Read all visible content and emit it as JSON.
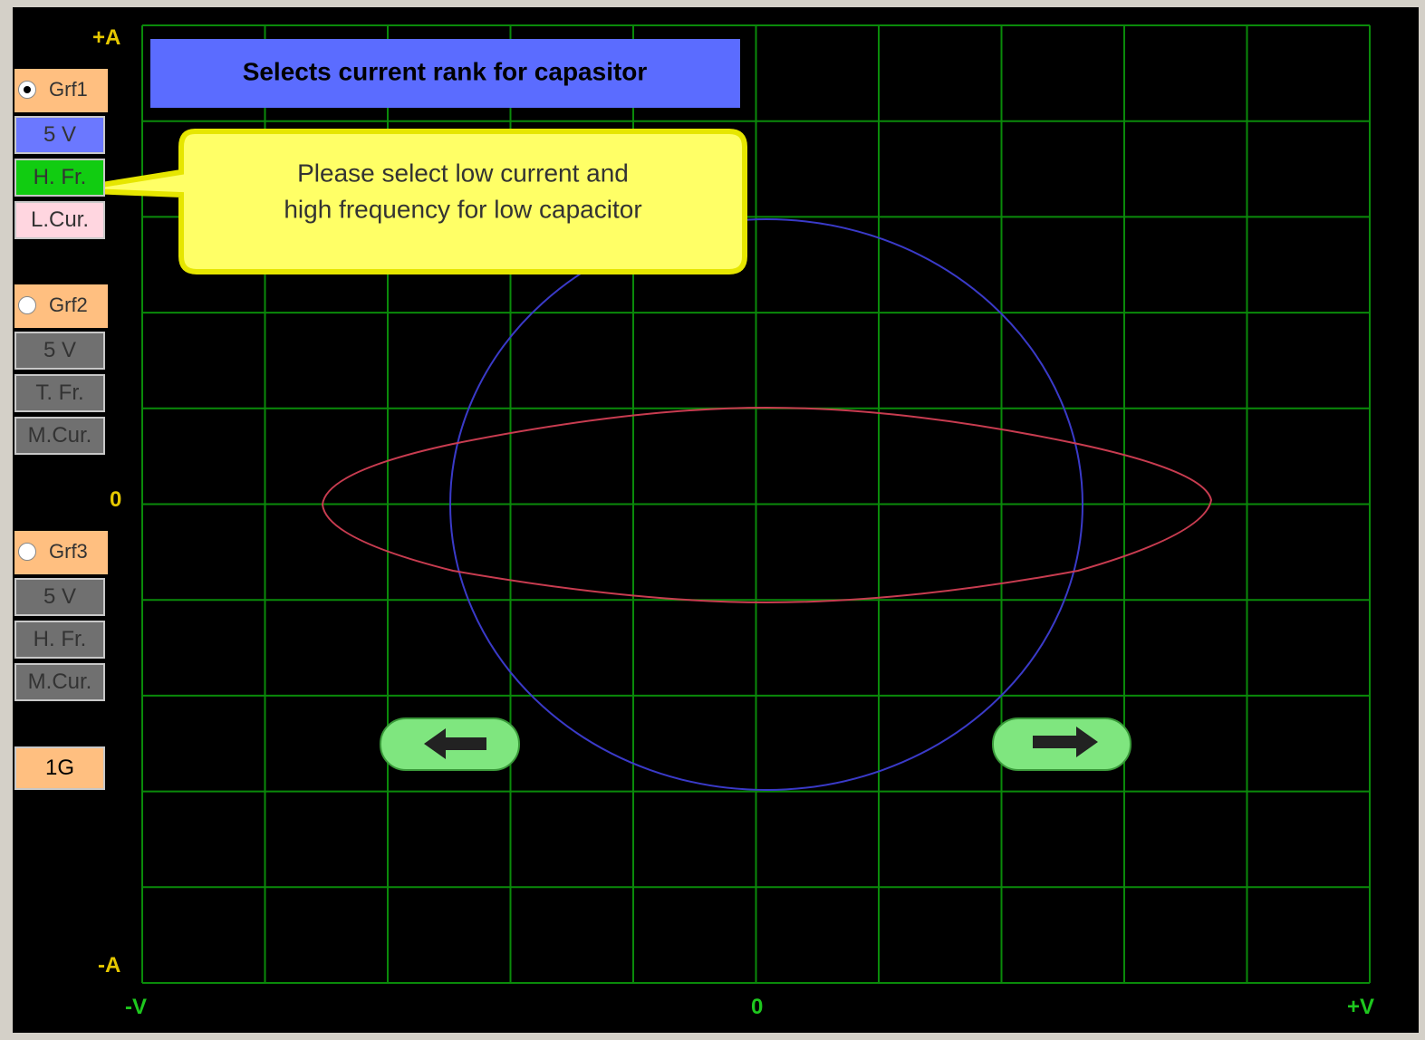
{
  "axis_labels": {
    "y_top": "+A",
    "y_mid": "0",
    "y_bottom": "-A",
    "x_left": "-V",
    "x_mid": "0",
    "x_right": "+V"
  },
  "banner": "Selects current rank for capasitor",
  "tooltip": [
    "Please select low current and",
    "high frequency for low capacitor"
  ],
  "groups": [
    {
      "label": "Grf1",
      "selected": true,
      "buttons": [
        "5 V",
        "H. Fr.",
        "L.Cur."
      ]
    },
    {
      "label": "Grf2",
      "selected": false,
      "buttons": [
        "5 V",
        "T. Fr.",
        "M.Cur."
      ]
    },
    {
      "label": "Grf3",
      "selected": false,
      "buttons": [
        "5 V",
        "H. Fr.",
        "M.Cur."
      ]
    }
  ],
  "global_button": "1G"
}
